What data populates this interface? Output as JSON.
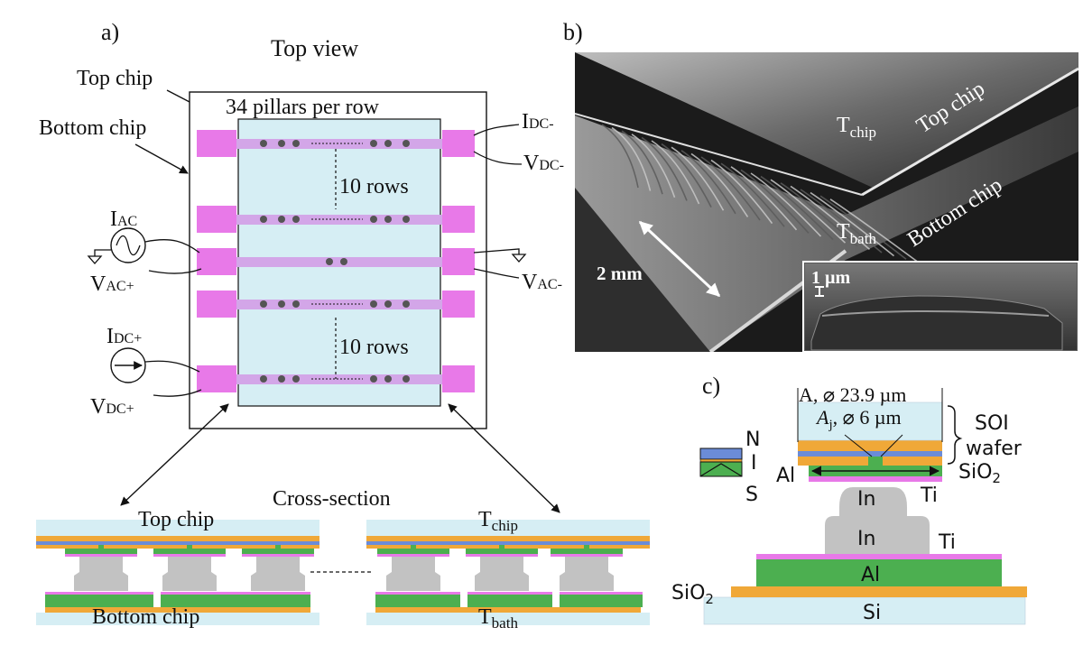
{
  "panel_a": {
    "label": "a)",
    "title": "Top view",
    "top_chip_label": "Top chip",
    "bottom_chip_label": "Bottom chip",
    "pillars_label": "34 pillars per row",
    "rows_label_1": "10 rows",
    "rows_label_2": "10 rows",
    "i_ac": {
      "main": "I",
      "sub": "AC"
    },
    "v_ac_plus": {
      "main": "V",
      "sub": "AC+"
    },
    "i_dc_plus": {
      "main": "I",
      "sub": "DC+"
    },
    "v_dc_plus": {
      "main": "V",
      "sub": "DC+"
    },
    "i_dc_minus": {
      "main": "I",
      "sub": "DC-"
    },
    "v_dc_minus": {
      "main": "V",
      "sub": "DC-"
    },
    "v_ac_minus": {
      "main": "V",
      "sub": "AC-"
    },
    "cross_section_title": "Cross-section",
    "cs_top_chip": "Top chip",
    "cs_bottom_chip": "Bottom chip",
    "t_chip": {
      "main": "T",
      "sub": "chip"
    },
    "t_bath": {
      "main": "T",
      "sub": "bath"
    }
  },
  "panel_b": {
    "label": "b)",
    "t_chip": {
      "main": "T",
      "sub": "chip"
    },
    "t_bath": {
      "main": "T",
      "sub": "bath"
    },
    "top_chip": "Top chip",
    "bottom_chip": "Bottom chip",
    "scale_2mm": "2 mm",
    "scale_1um": "1 µm"
  },
  "panel_c": {
    "label": "c)",
    "area_label": "A, ⌀ 23.9 µm",
    "area_j_label": "A",
    "area_j_sub": "j",
    "area_j_rest": ", ⌀ 6 µm",
    "soi": "SOI",
    "wafer": "wafer",
    "sio2_right": {
      "main": "SiO",
      "sub": "2"
    },
    "al_top": "Al",
    "ti_1": "Ti",
    "in_1": "In",
    "in_2": "In",
    "ti_2": "Ti",
    "al_bottom": "Al",
    "sio2_left": {
      "main": "SiO",
      "sub": "2"
    },
    "si": "Si",
    "legend_n": "N",
    "legend_i": "I",
    "legend_s": "S"
  },
  "colors": {
    "pad": "#e879e8",
    "strip": "#d3a6e8",
    "chip": "#d6eef4",
    "green": "#4caf50",
    "orange": "#f0a838",
    "blue": "#6b8cd8",
    "gray": "#c2c2c2"
  }
}
